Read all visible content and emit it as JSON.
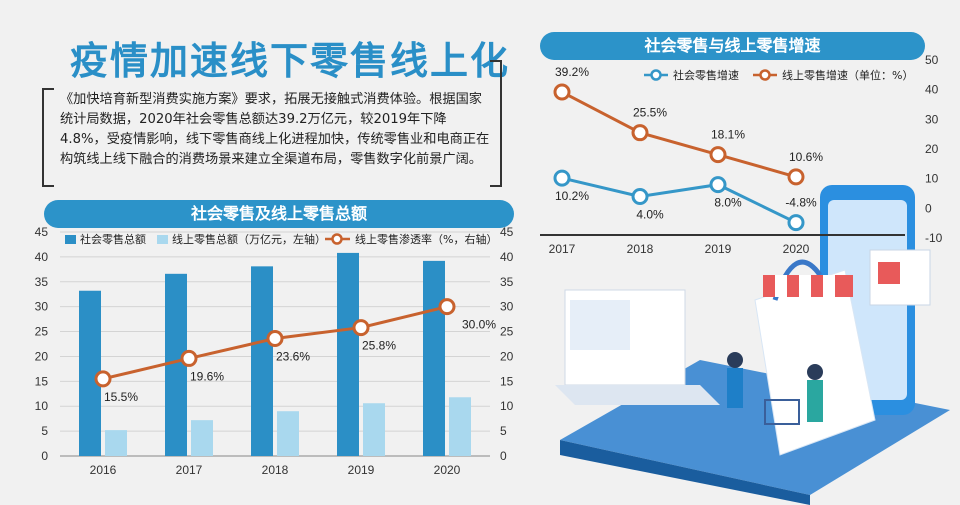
{
  "headline": "疫情加速线下零售线上化",
  "intro": "《加快培育新型消费实施方案》要求，拓展无接触式消费体验。根据国家统计局数据，2020年社会零售总额达39.2万亿元，较2019年下降4.8%，受疫情影响，线下零售商线上化进程加快，传统零售业和电商正在构筑线上线下融合的消费场景来建立全渠道布局，零售数字化前景广阔。",
  "chart_data": [
    {
      "type": "bar",
      "title": "社会零售及线上零售总额",
      "categories": [
        "2016",
        "2017",
        "2018",
        "2019",
        "2020"
      ],
      "series": [
        {
          "name": "社会零售总额",
          "kind": "bar",
          "axis": "left",
          "color": "#2b8fc6",
          "values": [
            33.2,
            36.6,
            38.1,
            40.8,
            39.2
          ]
        },
        {
          "name": "线上零售总额（万亿元，左轴）",
          "kind": "bar",
          "axis": "left",
          "color": "#a9d8ee",
          "values": [
            5.2,
            7.2,
            9.0,
            10.6,
            11.8
          ]
        },
        {
          "name": "线上零售渗透率（%，右轴）",
          "kind": "line",
          "axis": "right",
          "color": "#c8622e",
          "values": [
            15.5,
            19.6,
            23.6,
            25.8,
            30.0
          ],
          "labels": [
            "15.5%",
            "19.6%",
            "23.6%",
            "25.8%",
            "30.0%"
          ]
        }
      ],
      "y_left_ticks": [
        "0",
        "5",
        "10",
        "15",
        "20",
        "25",
        "30",
        "35",
        "40",
        "45"
      ],
      "y_right_ticks": [
        "0",
        "5",
        "10",
        "15",
        "20",
        "25",
        "30",
        "35",
        "40",
        "45"
      ],
      "ylim": [
        0,
        45
      ],
      "legend": "top"
    },
    {
      "type": "line",
      "title": "社会零售与线上零售增速",
      "categories": [
        "2017",
        "2018",
        "2019",
        "2020"
      ],
      "series": [
        {
          "name": "社会零售增速",
          "color": "#3597c8",
          "values": [
            10.2,
            4.0,
            8.0,
            -4.8
          ],
          "labels": [
            "10.2%",
            "4.0%",
            "8.0%",
            "-4.8%"
          ]
        },
        {
          "name": "线上零售增速（单位：%）",
          "color": "#c8622e",
          "values": [
            39.2,
            25.5,
            18.1,
            10.6
          ],
          "labels": [
            "39.2%",
            "25.5%",
            "18.1%",
            "10.6%"
          ]
        }
      ],
      "y_ticks": [
        "50",
        "40",
        "30",
        "20",
        "10",
        "0",
        "-10"
      ],
      "ylim": [
        -10,
        50
      ],
      "legend": "top"
    }
  ]
}
